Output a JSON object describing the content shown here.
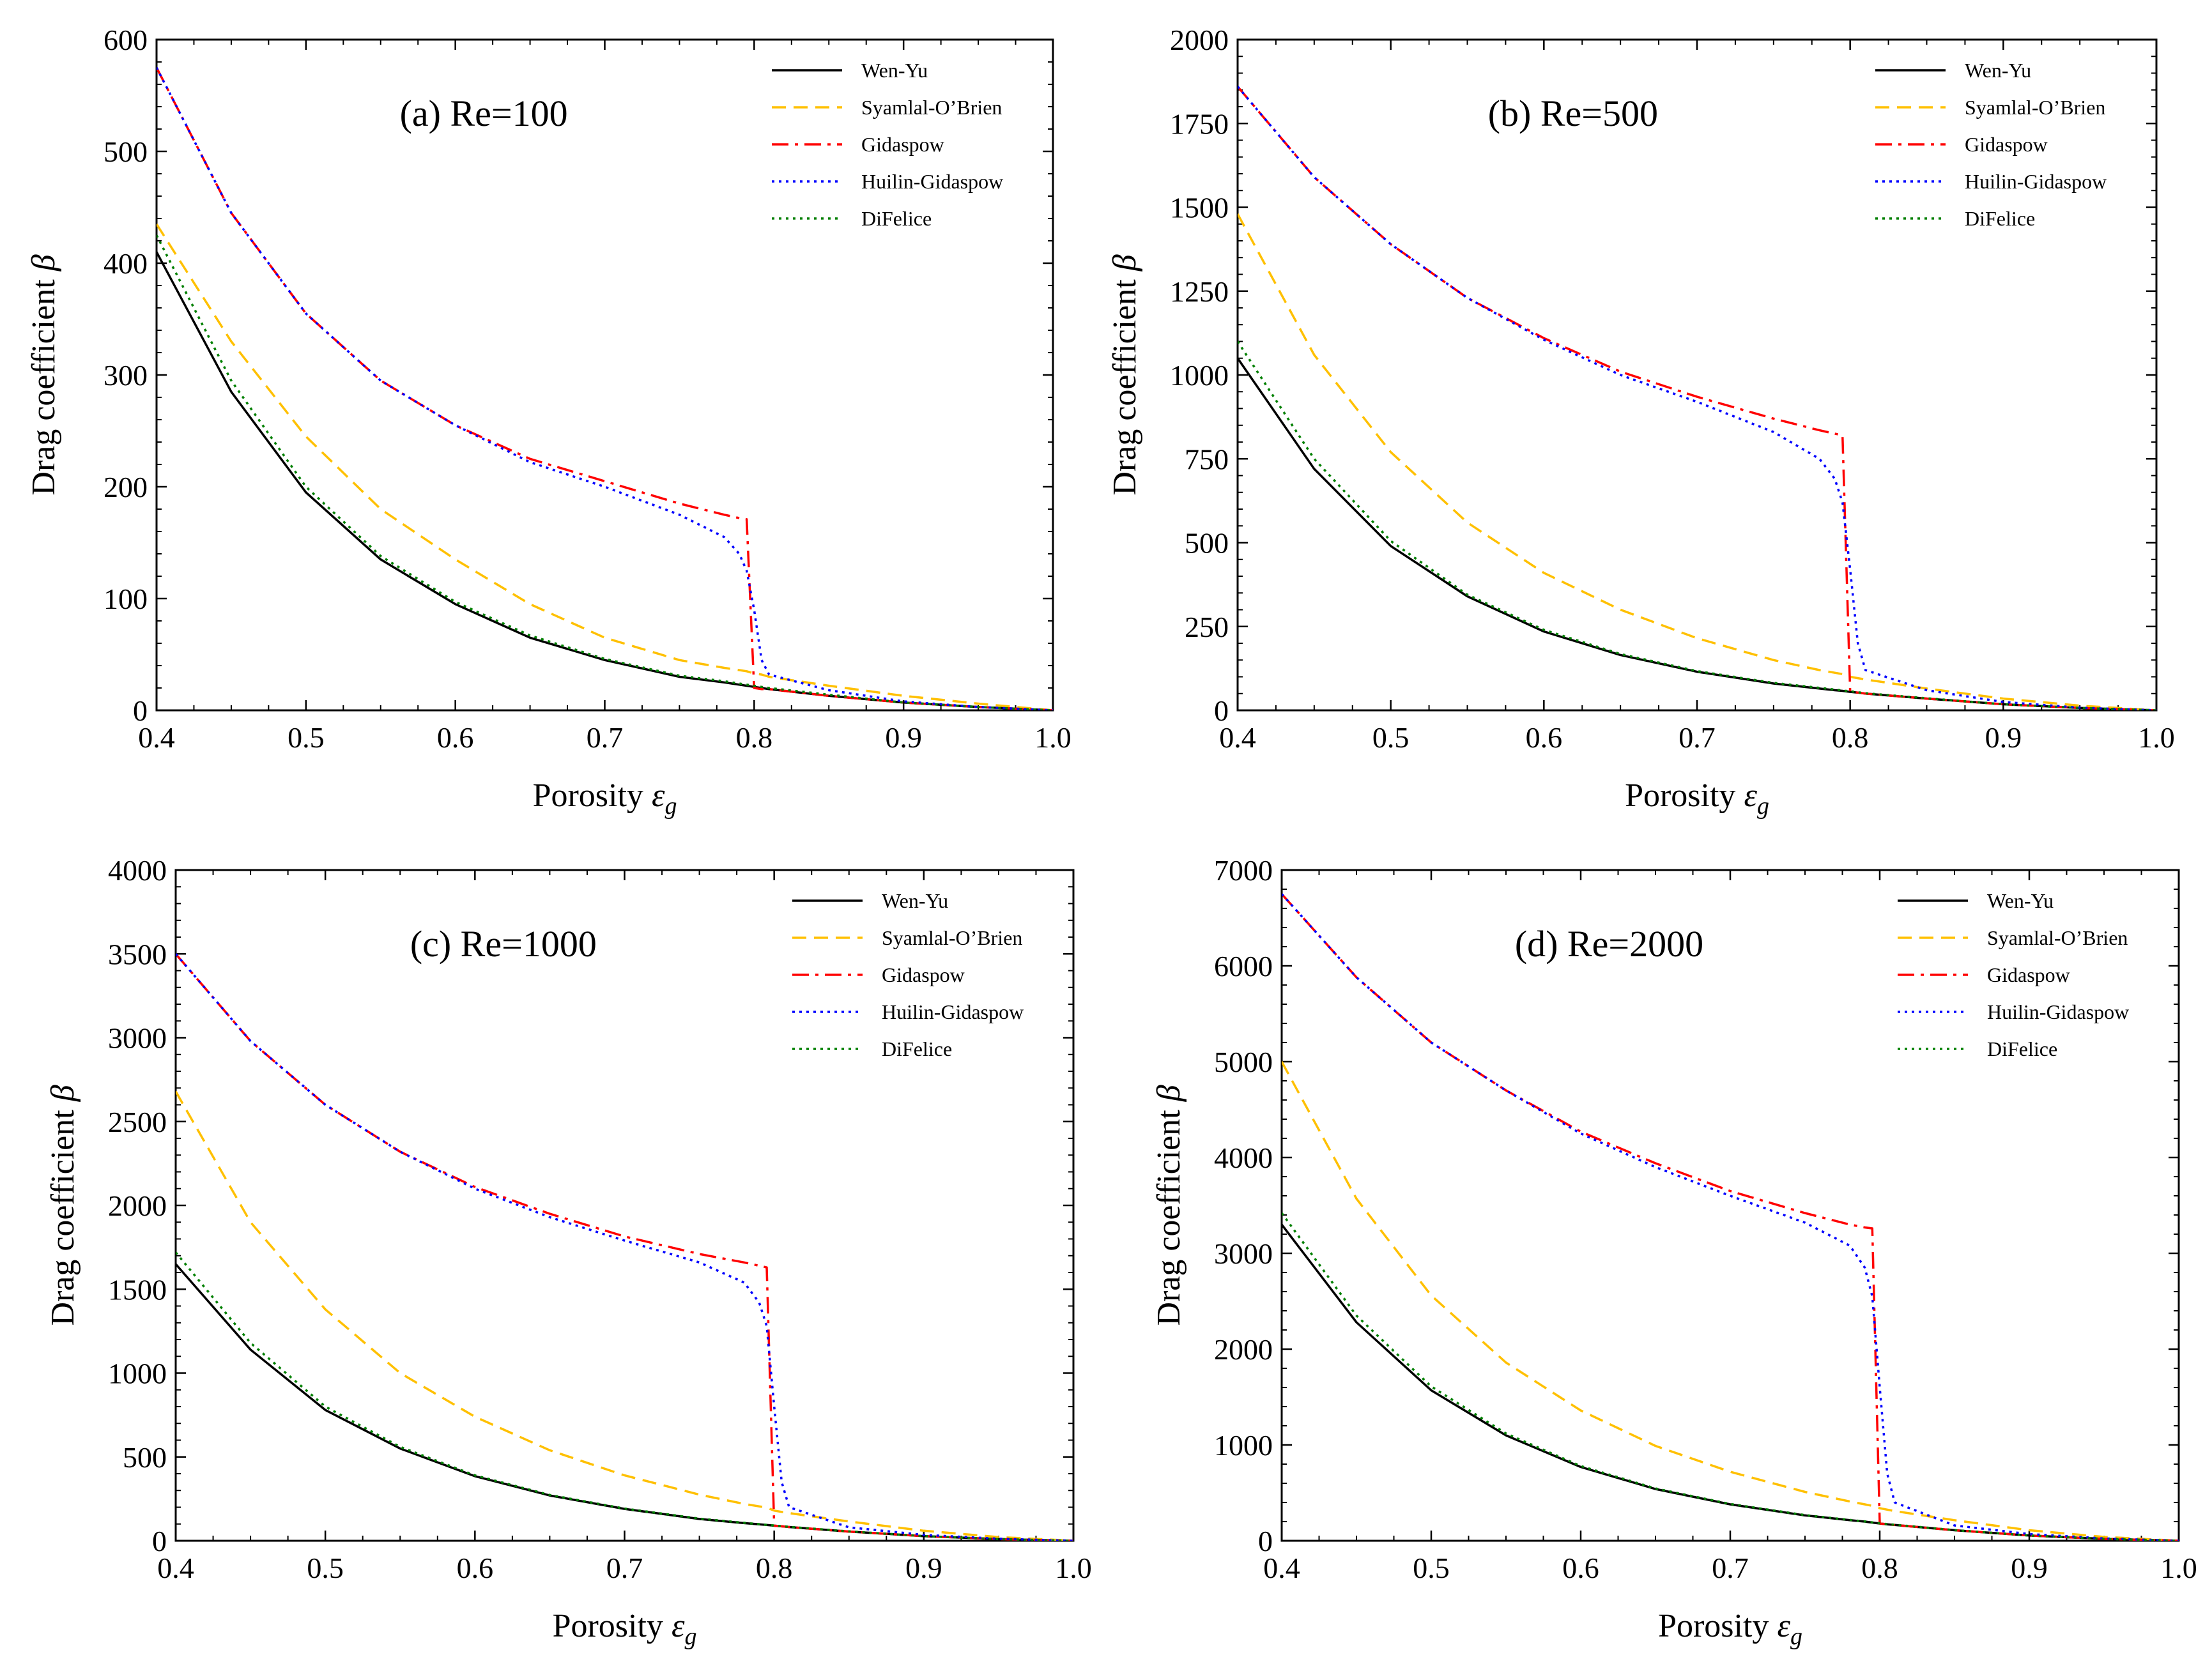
{
  "chart_data": [
    {
      "type": "line",
      "title": "(a) Re=100",
      "xlabel": "Porosity ",
      "xlabel_symbol": "ε",
      "xlabel_sub": "g",
      "ylabel": "Drag coefficient ",
      "ylabel_symbol": "β",
      "xlim": [
        0.4,
        1.0
      ],
      "ylim": [
        0,
        600
      ],
      "xticks": [
        "0.4",
        "0.5",
        "0.6",
        "0.7",
        "0.8",
        "0.9",
        "1.0"
      ],
      "yticks": [
        "0",
        "100",
        "200",
        "300",
        "400",
        "500",
        "600"
      ],
      "legend_position": "top-right",
      "x": [
        0.4,
        0.45,
        0.5,
        0.55,
        0.6,
        0.65,
        0.7,
        0.75,
        0.78,
        0.79,
        0.795,
        0.8,
        0.805,
        0.81,
        0.85,
        0.9,
        0.95,
        1.0
      ],
      "series": [
        {
          "name": "Wen-Yu",
          "color": "#000000",
          "dash": "solid",
          "values": [
            410,
            285,
            195,
            135,
            95,
            65,
            45,
            30,
            25,
            23,
            22,
            21,
            20,
            19,
            13,
            7,
            3,
            0
          ]
        },
        {
          "name": "Syamlal-O’Brien",
          "color": "#ffc000",
          "dash": "dashed",
          "values": [
            435,
            330,
            245,
            180,
            135,
            95,
            65,
            45,
            38,
            36,
            35,
            33,
            32,
            30,
            22,
            13,
            6,
            0
          ]
        },
        {
          "name": "Gidaspow",
          "color": "#ff0000",
          "dash": "dashdot",
          "values": [
            575,
            445,
            355,
            295,
            255,
            225,
            205,
            185,
            175,
            172,
            171,
            20,
            19,
            19,
            13,
            7,
            3,
            0
          ]
        },
        {
          "name": "Huilin-Gidaspow",
          "color": "#0000ff",
          "dash": "dotted",
          "values": [
            575,
            445,
            355,
            295,
            255,
            222,
            200,
            175,
            155,
            140,
            125,
            90,
            45,
            32,
            18,
            8,
            3,
            0
          ]
        },
        {
          "name": "DiFelice",
          "color": "#008000",
          "dash": "dotted",
          "values": [
            425,
            295,
            200,
            138,
            97,
            67,
            46,
            31,
            26,
            24,
            23,
            22,
            21,
            20,
            14,
            7,
            3,
            0
          ]
        }
      ]
    },
    {
      "type": "line",
      "title": "(b) Re=500",
      "xlabel": "Porosity ",
      "xlabel_symbol": "ε",
      "xlabel_sub": "g",
      "ylabel": "Drag coefficient ",
      "ylabel_symbol": "β",
      "xlim": [
        0.4,
        1.0
      ],
      "ylim": [
        0,
        2000
      ],
      "xticks": [
        "0.4",
        "0.5",
        "0.6",
        "0.7",
        "0.8",
        "0.9",
        "1.0"
      ],
      "yticks": [
        "0",
        "250",
        "500",
        "750",
        "1000",
        "1250",
        "1500",
        "1750",
        "2000"
      ],
      "legend_position": "top-right",
      "x": [
        0.4,
        0.45,
        0.5,
        0.55,
        0.6,
        0.65,
        0.7,
        0.75,
        0.78,
        0.79,
        0.795,
        0.8,
        0.805,
        0.81,
        0.85,
        0.9,
        0.95,
        1.0
      ],
      "series": [
        {
          "name": "Wen-Yu",
          "color": "#000000",
          "dash": "solid",
          "values": [
            1050,
            720,
            490,
            340,
            235,
            165,
            115,
            80,
            65,
            60,
            58,
            55,
            53,
            50,
            35,
            18,
            7,
            0
          ]
        },
        {
          "name": "Syamlal-O’Brien",
          "color": "#ffc000",
          "dash": "dashed",
          "values": [
            1480,
            1060,
            770,
            560,
            410,
            300,
            215,
            150,
            120,
            112,
            108,
            100,
            96,
            92,
            65,
            35,
            14,
            0
          ]
        },
        {
          "name": "Gidaspow",
          "color": "#ff0000",
          "dash": "dashdot",
          "values": [
            1860,
            1590,
            1390,
            1230,
            1110,
            1010,
            935,
            870,
            835,
            825,
            820,
            55,
            53,
            50,
            35,
            18,
            7,
            0
          ]
        },
        {
          "name": "Huilin-Gidaspow",
          "color": "#0000ff",
          "dash": "dotted",
          "values": [
            1860,
            1590,
            1390,
            1230,
            1105,
            1000,
            920,
            830,
            750,
            690,
            620,
            420,
            200,
            120,
            60,
            25,
            8,
            0
          ]
        },
        {
          "name": "DiFelice",
          "color": "#008000",
          "dash": "dotted",
          "values": [
            1100,
            750,
            505,
            345,
            240,
            168,
            117,
            82,
            67,
            62,
            59,
            57,
            54,
            51,
            36,
            18,
            7,
            0
          ]
        }
      ]
    },
    {
      "type": "line",
      "title": "(c) Re=1000",
      "xlabel": "Porosity ",
      "xlabel_symbol": "ε",
      "xlabel_sub": "g",
      "ylabel": "Drag coefficient ",
      "ylabel_symbol": "β",
      "xlim": [
        0.4,
        1.0
      ],
      "ylim": [
        0,
        4000
      ],
      "xticks": [
        "0.4",
        "0.5",
        "0.6",
        "0.7",
        "0.8",
        "0.9",
        "1.0"
      ],
      "yticks": [
        "0",
        "500",
        "1000",
        "1500",
        "2000",
        "2500",
        "3000",
        "3500",
        "4000"
      ],
      "legend_position": "top-right",
      "x": [
        0.4,
        0.45,
        0.5,
        0.55,
        0.6,
        0.65,
        0.7,
        0.75,
        0.78,
        0.79,
        0.795,
        0.8,
        0.805,
        0.81,
        0.85,
        0.9,
        0.95,
        1.0
      ],
      "series": [
        {
          "name": "Wen-Yu",
          "color": "#000000",
          "dash": "solid",
          "values": [
            1650,
            1140,
            780,
            550,
            385,
            270,
            190,
            130,
            105,
            98,
            94,
            90,
            86,
            82,
            55,
            28,
            10,
            0
          ]
        },
        {
          "name": "Syamlal-O’Brien",
          "color": "#ffc000",
          "dash": "dashed",
          "values": [
            2680,
            1900,
            1380,
            1000,
            740,
            540,
            390,
            275,
            220,
            205,
            198,
            180,
            172,
            165,
            115,
            60,
            22,
            0
          ]
        },
        {
          "name": "Gidaspow",
          "color": "#ff0000",
          "dash": "dashdot",
          "values": [
            3500,
            2980,
            2600,
            2320,
            2110,
            1950,
            1815,
            1710,
            1660,
            1640,
            1630,
            90,
            86,
            82,
            55,
            28,
            10,
            0
          ]
        },
        {
          "name": "Huilin-Gidaspow",
          "color": "#0000ff",
          "dash": "dotted",
          "values": [
            3500,
            2980,
            2600,
            2320,
            2100,
            1930,
            1790,
            1660,
            1540,
            1420,
            1280,
            800,
            350,
            200,
            80,
            35,
            12,
            0
          ]
        },
        {
          "name": "DiFelice",
          "color": "#008000",
          "dash": "dotted",
          "values": [
            1720,
            1180,
            800,
            560,
            390,
            273,
            192,
            132,
            107,
            99,
            95,
            91,
            87,
            83,
            56,
            28,
            10,
            0
          ]
        }
      ]
    },
    {
      "type": "line",
      "title": "(d) Re=2000",
      "xlabel": "Porosity ",
      "xlabel_symbol": "ε",
      "xlabel_sub": "g",
      "ylabel": "Drag coefficient ",
      "ylabel_symbol": "β",
      "xlim": [
        0.4,
        1.0
      ],
      "ylim": [
        0,
        7000
      ],
      "xticks": [
        "0.4",
        "0.5",
        "0.6",
        "0.7",
        "0.8",
        "0.9",
        "1.0"
      ],
      "yticks": [
        "0",
        "1000",
        "2000",
        "3000",
        "4000",
        "5000",
        "6000",
        "7000"
      ],
      "legend_position": "top-right",
      "x": [
        0.4,
        0.45,
        0.5,
        0.55,
        0.6,
        0.65,
        0.7,
        0.75,
        0.78,
        0.79,
        0.795,
        0.8,
        0.805,
        0.81,
        0.85,
        0.9,
        0.95,
        1.0
      ],
      "series": [
        {
          "name": "Wen-Yu",
          "color": "#000000",
          "dash": "solid",
          "values": [
            3300,
            2280,
            1570,
            1100,
            770,
            540,
            380,
            265,
            215,
            200,
            190,
            180,
            172,
            165,
            110,
            55,
            20,
            0
          ]
        },
        {
          "name": "Syamlal-O’Brien",
          "color": "#ffc000",
          "dash": "dashed",
          "values": [
            5000,
            3570,
            2560,
            1860,
            1360,
            990,
            720,
            510,
            410,
            380,
            365,
            340,
            325,
            310,
            215,
            110,
            40,
            0
          ]
        },
        {
          "name": "Gidaspow",
          "color": "#ff0000",
          "dash": "dashdot",
          "values": [
            6750,
            5880,
            5200,
            4700,
            4270,
            3940,
            3650,
            3420,
            3300,
            3270,
            3260,
            180,
            172,
            165,
            110,
            55,
            20,
            0
          ]
        },
        {
          "name": "Huilin-Gidaspow",
          "color": "#0000ff",
          "dash": "dotted",
          "values": [
            6750,
            5880,
            5200,
            4700,
            4250,
            3900,
            3600,
            3320,
            3080,
            2850,
            2550,
            1600,
            700,
            400,
            160,
            70,
            25,
            0
          ]
        },
        {
          "name": "DiFelice",
          "color": "#008000",
          "dash": "dotted",
          "values": [
            3420,
            2350,
            1610,
            1120,
            780,
            546,
            384,
            268,
            217,
            202,
            192,
            182,
            174,
            167,
            111,
            55,
            20,
            0
          ]
        }
      ]
    }
  ]
}
